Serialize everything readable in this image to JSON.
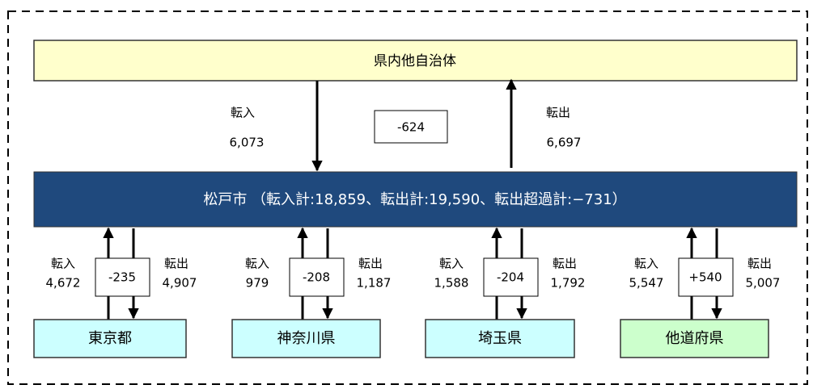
{
  "header_box": {
    "label": "県内他自治体"
  },
  "prefecture_flow": {
    "in_label": "転入",
    "in_value": "6,073",
    "net": "-624",
    "out_label": "転出",
    "out_value": "6,697"
  },
  "city": {
    "label": "松戸市 （転入計:18,859、転出計:19,590、転出超過計:−731）"
  },
  "regions": [
    {
      "name": "東京都",
      "in_label": "転入",
      "in_value": "4,672",
      "net": "-235",
      "out_label": "転出",
      "out_value": "4,907"
    },
    {
      "name": "神奈川県",
      "in_label": "転入",
      "in_value": "979",
      "net": "-208",
      "out_label": "転出",
      "out_value": "1,187"
    },
    {
      "name": "埼玉県",
      "in_label": "転入",
      "in_value": "1,588",
      "net": "-204",
      "out_label": "転出",
      "out_value": "1,792"
    },
    {
      "name": "他道府県",
      "in_label": "転入",
      "in_value": "5,547",
      "net": "+540",
      "out_label": "転出",
      "out_value": "5,007"
    }
  ]
}
